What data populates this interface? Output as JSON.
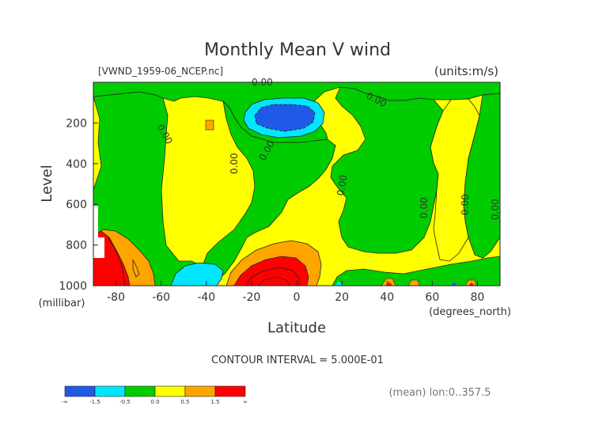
{
  "chart_data": {
    "type": "contour",
    "title": "Monthly Mean V wind",
    "file_label": "[VWND_1959-06_NCEP.nc]",
    "units_label": "(units:m/s)",
    "xlabel": "Latitude",
    "xunits": "(degrees_north)",
    "ylabel": "Level",
    "yunits": "(millibar)",
    "xlim": [
      -90,
      90
    ],
    "ylim": [
      1000,
      0
    ],
    "x_ticks": [
      -80,
      -60,
      -40,
      -20,
      0,
      20,
      40,
      60,
      80
    ],
    "y_ticks": [
      200,
      400,
      600,
      800,
      1000
    ],
    "contour_interval_text": "CONTOUR INTERVAL = 5.000E-01",
    "mean_text": "(mean) lon:0..357.5",
    "zero_contour_labels": [
      "0.00",
      "0.00",
      "0.00",
      "0.00",
      "0.00",
      "0.00",
      "0.00",
      "0.00",
      "0.00"
    ],
    "colorbar": {
      "labels": [
        "-∞",
        "-1.5",
        "-0.5",
        "0.0",
        "0.5",
        "1.5",
        "∞"
      ],
      "colors": [
        "#1e5ae6",
        "#00e6ff",
        "#00cc00",
        "#ffff00",
        "#ffa500",
        "#ff0000"
      ]
    },
    "regions": [
      {
        "level": "strong-negative",
        "lat_range": [
          -13,
          -1
        ],
        "p_range": [
          130,
          220
        ],
        "color": "#1e5ae6"
      },
      {
        "level": "weak-negative",
        "lat_range": [
          -22,
          10
        ],
        "p_range": [
          90,
          270
        ],
        "color": "#00e6ff"
      },
      {
        "level": "weak-negative",
        "lat_range": [
          -54,
          -30
        ],
        "p_range": [
          880,
          1000
        ],
        "color": "#00e6ff"
      },
      {
        "level": "weak-positive",
        "lat_range": [
          -90,
          90
        ],
        "p_range": [
          0,
          1000
        ],
        "color": "#ffff00"
      },
      {
        "level": "moderate-positive",
        "lat_range": [
          -25,
          10
        ],
        "p_range": [
          760,
          1000
        ],
        "color": "#ffa500"
      },
      {
        "level": "strong-positive",
        "lat_range": [
          -20,
          -2
        ],
        "p_range": [
          870,
          1000
        ],
        "color": "#ff0000"
      },
      {
        "level": "moderate-positive",
        "lat_range": [
          -85,
          -63
        ],
        "p_range": [
          700,
          1000
        ],
        "color": "#ffa500"
      },
      {
        "level": "strong-positive",
        "lat_range": [
          -90,
          -80
        ],
        "p_range": [
          700,
          1000
        ],
        "color": "#ff0000"
      }
    ]
  }
}
